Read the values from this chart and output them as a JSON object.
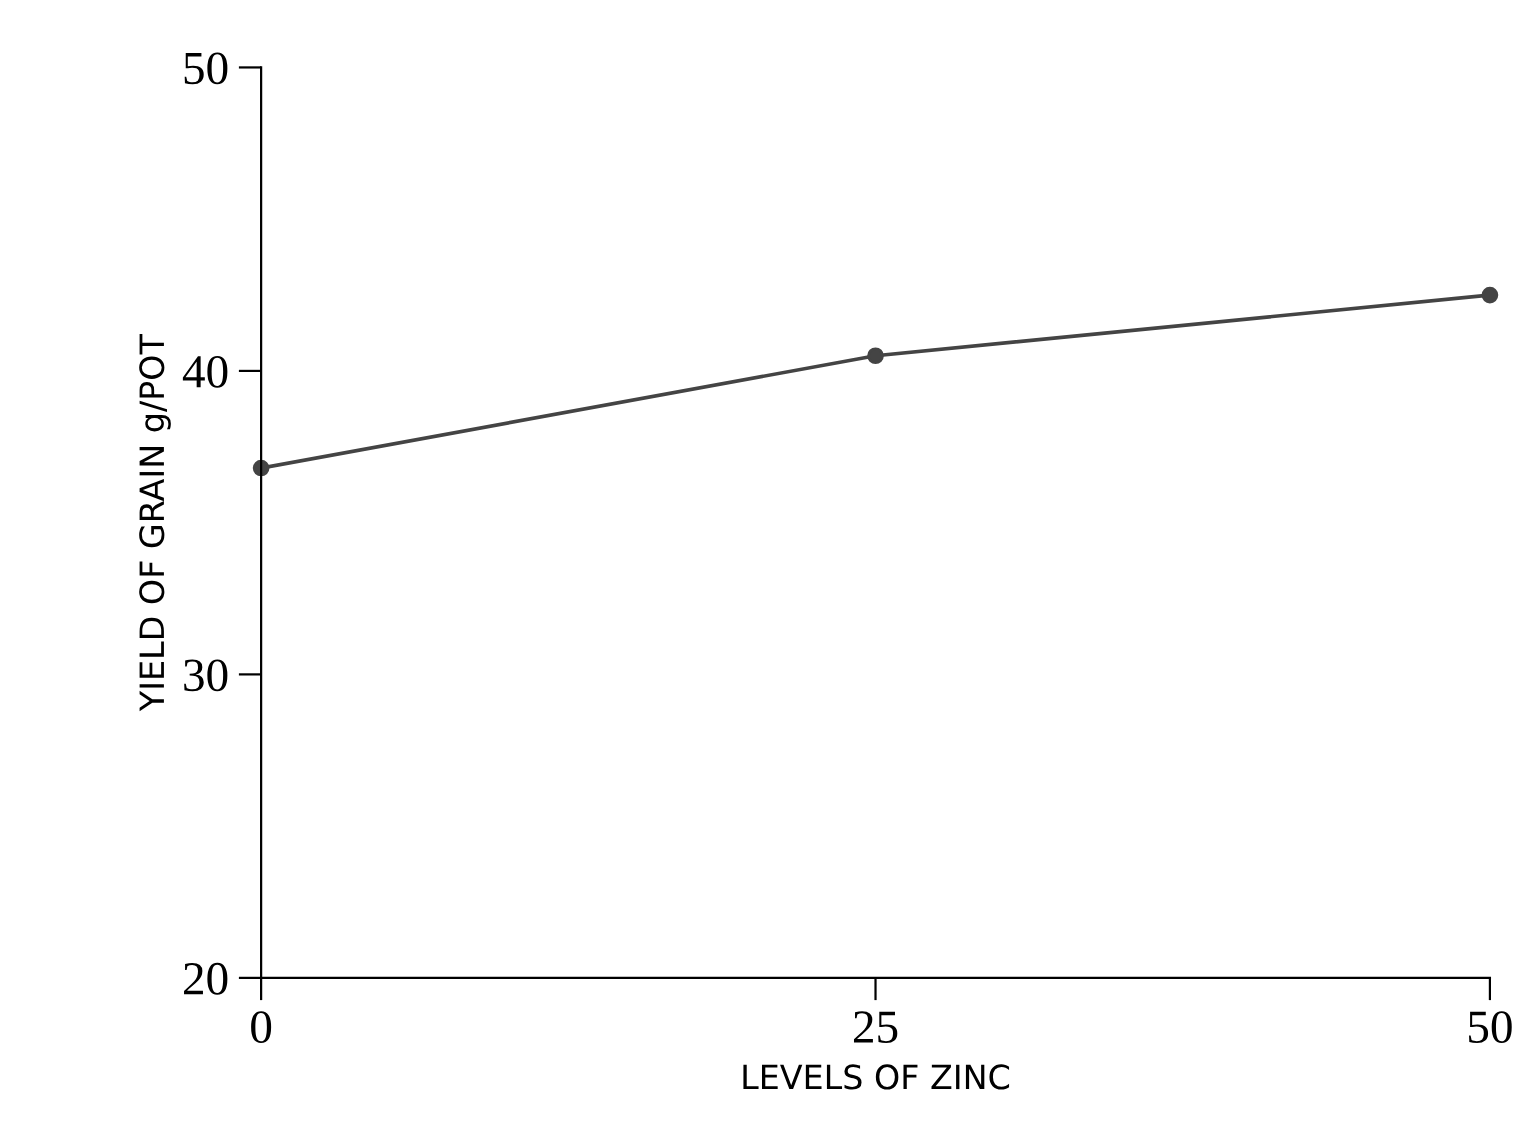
{
  "chart_data": {
    "type": "line",
    "xlabel": "LEVELS OF ZINC",
    "ylabel": "YIELD OF GRAIN g/POT",
    "x": [
      0,
      25,
      50
    ],
    "values": [
      36.8,
      40.5,
      42.5
    ],
    "color": "#444444",
    "marker": "circle",
    "line_style": "solid",
    "xlim": [
      0,
      50
    ],
    "ylim": [
      20,
      50
    ],
    "xticks": [
      0,
      25,
      50
    ],
    "yticks": [
      20,
      30,
      40,
      50
    ],
    "grid": false,
    "legend": false
  }
}
